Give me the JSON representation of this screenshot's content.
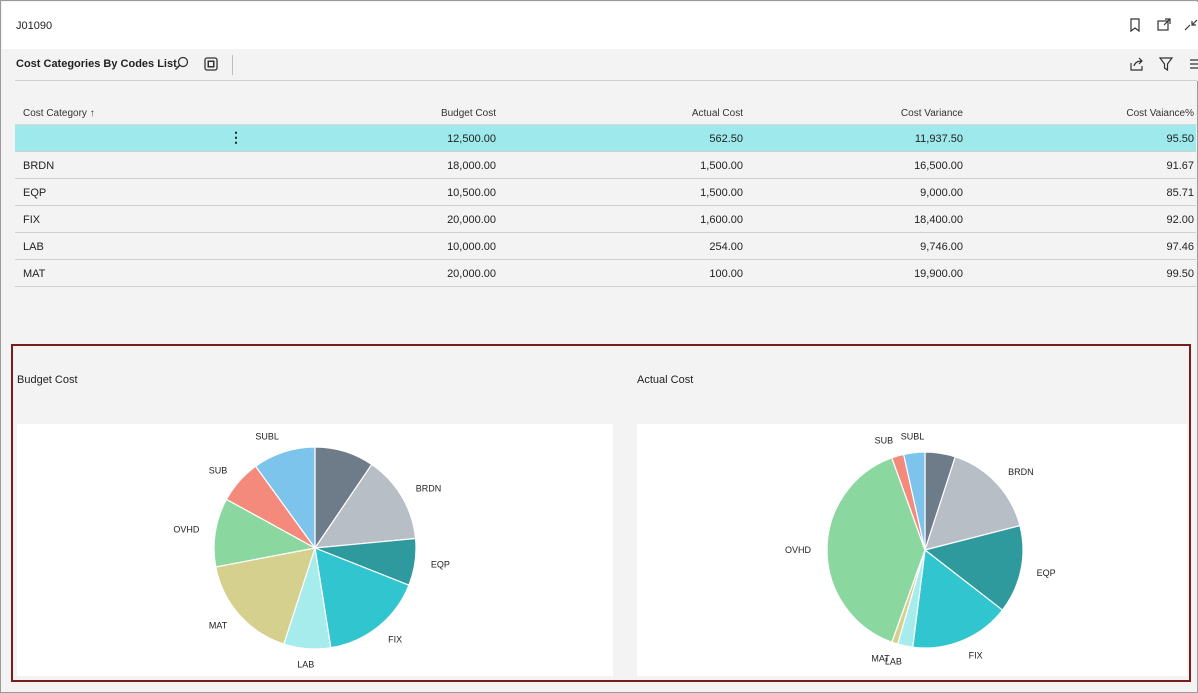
{
  "header": {
    "record_id": "J01090"
  },
  "toolbar": {
    "title": "Cost Categories By Codes List"
  },
  "table": {
    "columns": [
      "Cost Category ↑",
      "Budget Cost",
      "Actual Cost",
      "Cost Variance",
      "Cost Vaiance%"
    ],
    "rows": [
      {
        "category": "",
        "budget": "12,500.00",
        "actual": "562.50",
        "variance": "11,937.50",
        "variance_pct": "95.50"
      },
      {
        "category": "BRDN",
        "budget": "18,000.00",
        "actual": "1,500.00",
        "variance": "16,500.00",
        "variance_pct": "91.67"
      },
      {
        "category": "EQP",
        "budget": "10,500.00",
        "actual": "1,500.00",
        "variance": "9,000.00",
        "variance_pct": "85.71"
      },
      {
        "category": "FIX",
        "budget": "20,000.00",
        "actual": "1,600.00",
        "variance": "18,400.00",
        "variance_pct": "92.00"
      },
      {
        "category": "LAB",
        "budget": "10,000.00",
        "actual": "254.00",
        "variance": "9,746.00",
        "variance_pct": "97.46"
      },
      {
        "category": "MAT",
        "budget": "20,000.00",
        "actual": "100.00",
        "variance": "19,900.00",
        "variance_pct": "99.50"
      }
    ],
    "row_menu_glyph": "⋮"
  },
  "colors": {
    "selected_row": "#9ee9ec",
    "panel_border": "#7a1c1c"
  },
  "chart_data": [
    {
      "type": "pie",
      "title": "Budget Cost",
      "labels": [
        "",
        "BRDN",
        "EQP",
        "FIX",
        "LAB",
        "MAT",
        "OVHD",
        "SUB",
        "SUBL"
      ],
      "values": [
        9.5,
        14.0,
        7.5,
        16.5,
        7.5,
        17.0,
        11.0,
        7.0,
        10.0
      ],
      "colors": [
        "#6e7b88",
        "#b8bec6",
        "#2e9a9e",
        "#31c6cf",
        "#a6ecec",
        "#d6d08f",
        "#8ad8a0",
        "#f48a7b",
        "#7cc4ec"
      ]
    },
    {
      "type": "pie",
      "title": "Actual Cost",
      "labels": [
        "",
        "BRDN",
        "EQP",
        "FIX",
        "LAB",
        "MAT",
        "OVHD",
        "SUB",
        "SUBL"
      ],
      "values": [
        5.0,
        16.0,
        14.5,
        16.5,
        2.5,
        1.0,
        39.0,
        2.0,
        3.5
      ],
      "colors": [
        "#6e7b88",
        "#b8bec6",
        "#2e9a9e",
        "#31c6cf",
        "#a6ecec",
        "#d6d08f",
        "#8ad8a0",
        "#f48a7b",
        "#7cc4ec"
      ]
    }
  ]
}
